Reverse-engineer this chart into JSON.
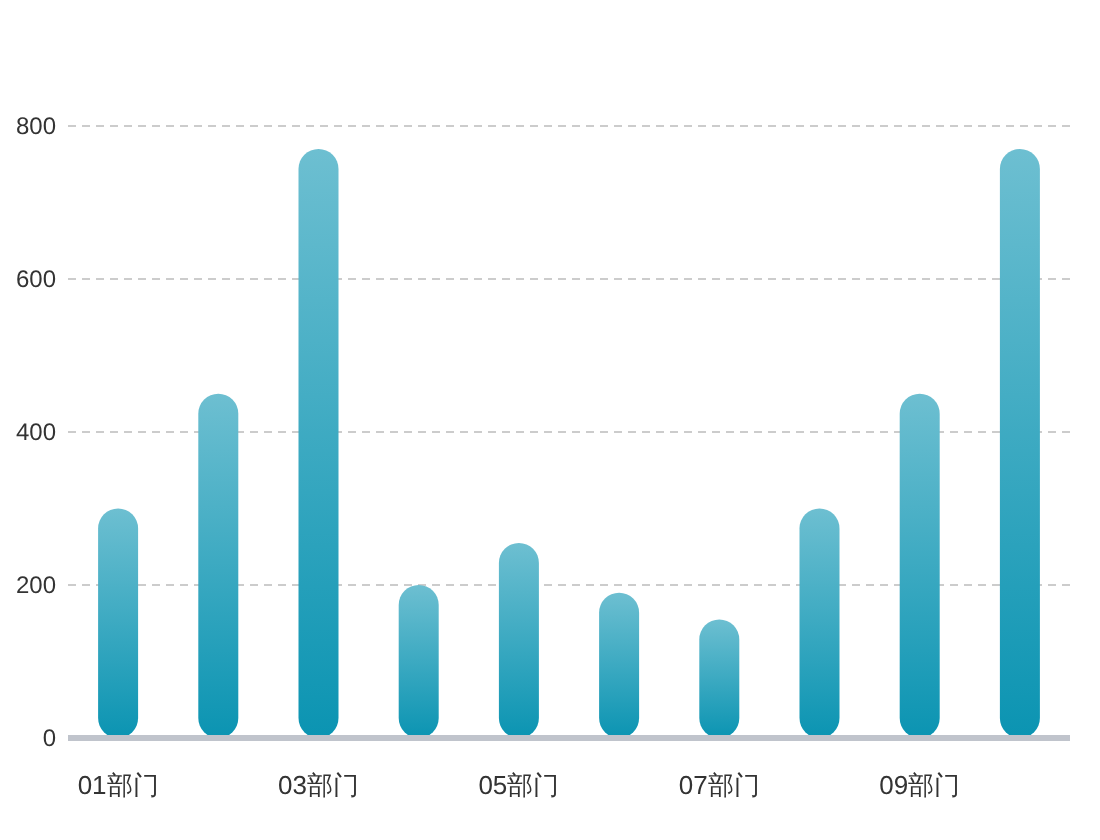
{
  "chart_data": {
    "type": "bar",
    "categories": [
      "01部门",
      null,
      "03部门",
      null,
      "05部门",
      null,
      "07部门",
      null,
      "09部门",
      null
    ],
    "values": [
      300,
      450,
      770,
      200,
      255,
      190,
      155,
      300,
      450,
      770
    ],
    "color": "#0b94b2",
    "ylim": [
      0,
      800
    ],
    "yticks": [
      0,
      200,
      400,
      600,
      800
    ],
    "grid": "y"
  }
}
